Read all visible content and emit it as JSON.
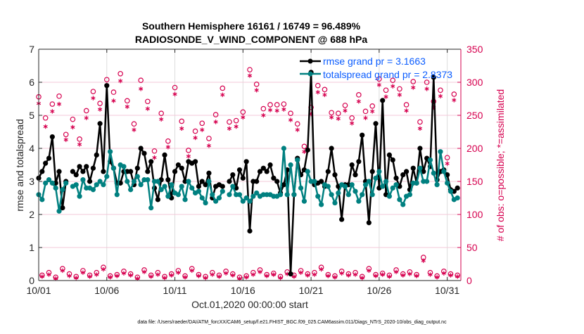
{
  "chart_data": {
    "type": "line",
    "title": [
      "Southern Hemisphere 16161 / 16749 = 96.489%",
      "RADIOSONDE_V_WIND_COMPONENT @ 688 hPa"
    ],
    "xlabel": "Oct.01,2020 00:00:00 start",
    "ylabel": "rmse and totalspread",
    "ylabel_right": "# of obs: o=possible; *=assimilated",
    "footer": "data file: /Users/raeder/DAI/ATM_forcXX/CAM6_setup/f.e21.FHIST_BGC.f09_025.CAM6assim.011/Diags_NTrS_2020-10/obs_diag_output.nc",
    "time_start": "2020-10-01 00:00",
    "time_step": "6 hours",
    "xlim": [
      "2020-10-01",
      "2020-11-01"
    ],
    "xticks": [
      "10/01",
      "10/06",
      "10/11",
      "10/16",
      "10/21",
      "10/26",
      "10/31"
    ],
    "ylim": [
      0,
      7
    ],
    "yticks": [
      "0",
      "1",
      "2",
      "3",
      "4",
      "5",
      "6",
      "7"
    ],
    "ylim_right": [
      0,
      350
    ],
    "yticks_right": [
      "0",
      "50",
      "100",
      "150",
      "200",
      "250",
      "300",
      "350"
    ],
    "grid": true,
    "legend_position": "top-right",
    "colors": {
      "rmse": "#000000",
      "totalspread": "#008080",
      "obs": "#d6004f",
      "legend_text": "#0a5cff"
    },
    "series": [
      {
        "name": "rmse grand pr = 3.1663",
        "color": "#000000",
        "values": [
          3.1,
          3.3,
          3.55,
          3.7,
          4.35,
          2.95,
          3.3,
          2.2,
          3.0,
          null,
          3.3,
          3.2,
          3.45,
          3.3,
          3.45,
          3.0,
          3.4,
          3.8,
          4.75,
          3.3,
          5.9,
          3.6,
          3.4,
          2.95,
          2.95,
          3.3,
          3.3,
          3.3,
          2.9,
          3.4,
          4.0,
          3.85,
          3.3,
          3.6,
          2.8,
          2.45,
          3.05,
          3.8,
          3.05,
          2.5,
          3.3,
          3.5,
          3.4,
          3.0,
          3.6,
          3.55,
          3.6,
          2.85,
          3.0,
          2.9,
          3.25,
          2.5,
          2.85,
          2.9,
          2.85,
          null,
          3.0,
          3.2,
          2.8,
          3.35,
          3.1,
          3.6,
          1.5,
          3.0,
          3.0,
          3.3,
          3.4,
          3.3,
          3.5,
          3.1,
          3.0,
          2.65,
          2.9,
          3.35,
          0.2,
          2.6,
          3.7,
          3.2,
          3.35,
          3.95,
          6.3,
          2.9,
          2.95,
          3.0,
          2.85,
          3.3,
          4.0,
          3.2,
          2.85,
          1.85,
          2.9,
          2.9,
          3.5,
          3.2,
          3.6,
          4.4,
          3.0,
          1.75,
          3.3,
          4.75,
          2.8,
          5.45,
          2.6,
          3.8,
          3.65,
          3.1,
          2.85,
          3.2,
          3.3,
          2.75,
          3.4,
          2.95,
          4.0,
          3.3,
          3.7,
          3.45,
          6.15,
          3.05,
          3.3,
          3.35,
          3.2,
          2.75,
          2.7,
          2.8
        ]
      },
      {
        "name": "totalspread grand pr = 2.8373",
        "color": "#008080",
        "values": [
          2.6,
          2.45,
          2.95,
          3.05,
          2.95,
          2.8,
          2.1,
          2.75,
          2.95,
          null,
          2.85,
          2.9,
          2.55,
          3.05,
          2.8,
          2.8,
          2.75,
          2.9,
          3.0,
          2.9,
          3.15,
          3.9,
          3.4,
          2.6,
          3.5,
          3.45,
          3.0,
          2.75,
          3.0,
          3.15,
          2.9,
          3.05,
          3.05,
          2.2,
          3.0,
          3.0,
          2.75,
          2.85,
          2.55,
          2.9,
          2.65,
          2.6,
          2.85,
          2.45,
          3.0,
          2.8,
          2.65,
          2.7,
          2.5,
          2.35,
          3.0,
          2.6,
          2.4,
          2.5,
          2.7,
          null,
          2.6,
          2.85,
          2.6,
          2.6,
          2.4,
          2.5,
          2.4,
          2.55,
          2.65,
          2.55,
          2.6,
          2.6,
          2.6,
          2.55,
          2.55,
          2.6,
          4.0,
          2.6,
          3.5,
          2.6,
          3.65,
          2.8,
          2.4,
          3.3,
          3.0,
          3.0,
          2.55,
          2.3,
          2.9,
          2.85,
          2.6,
          2.35,
          2.65,
          2.9,
          2.85,
          2.6,
          2.9,
          2.7,
          2.4,
          2.6,
          2.9,
          3.0,
          2.6,
          3.1,
          3.3,
          2.85,
          3.0,
          2.55,
          2.8,
          2.9,
          2.45,
          2.3,
          2.55,
          2.6,
          2.95,
          2.95,
          3.4,
          3.0,
          3.0,
          3.65,
          3.25,
          2.9,
          3.9,
          3.3,
          2.95,
          2.7,
          2.45,
          2.5
        ]
      }
    ],
    "obs_possible": [
      278,
      8,
      246,
      12,
      267,
      5,
      279,
      18,
      221,
      10,
      244,
      6,
      214,
      15,
      257,
      8,
      286,
      12,
      268,
      20,
      304,
      7,
      285,
      9,
      313,
      14,
      272,
      10,
      237,
      5,
      303,
      16,
      271,
      8,
      196,
      12,
      253,
      6,
      211,
      10,
      292,
      15,
      241,
      7,
      197,
      18,
      226,
      9,
      238,
      6,
      215,
      12,
      251,
      8,
      291,
      14,
      240,
      10,
      242,
      5,
      255,
      7,
      319,
      12,
      297,
      16,
      260,
      9,
      266,
      11,
      266,
      6,
      267,
      13,
      253,
      8,
      237,
      15,
      203,
      10,
      262,
      12,
      295,
      20,
      289,
      9,
      254,
      7,
      253,
      14,
      265,
      10,
      246,
      12,
      281,
      6,
      256,
      18,
      264,
      9,
      305,
      11,
      288,
      8,
      303,
      16,
      290,
      10,
      266,
      13,
      301,
      9,
      240,
      35,
      300,
      12,
      271,
      7,
      288,
      14,
      186,
      10,
      282,
      8
    ],
    "obs_assimilated": [
      268,
      6,
      233,
      9,
      256,
      3,
      267,
      15,
      213,
      7,
      232,
      4,
      206,
      12,
      246,
      6,
      276,
      9,
      259,
      17,
      296,
      5,
      272,
      7,
      302,
      11,
      263,
      8,
      228,
      3,
      290,
      13,
      260,
      6,
      186,
      9,
      244,
      4,
      202,
      8,
      282,
      12,
      230,
      5,
      188,
      15,
      216,
      7,
      228,
      4,
      204,
      9,
      240,
      6,
      281,
      11,
      230,
      8,
      233,
      3,
      247,
      5,
      310,
      9,
      288,
      13,
      250,
      7,
      258,
      9,
      257,
      4,
      259,
      10,
      243,
      6,
      228,
      12,
      195,
      8,
      252,
      9,
      285,
      17,
      281,
      7,
      247,
      5,
      245,
      11,
      257,
      8,
      238,
      9,
      271,
      4,
      246,
      15,
      256,
      7,
      296,
      9,
      278,
      6,
      294,
      13,
      281,
      8,
      257,
      10,
      292,
      7,
      230,
      30,
      290,
      9,
      262,
      5,
      279,
      11,
      177,
      8,
      273,
      6
    ]
  }
}
